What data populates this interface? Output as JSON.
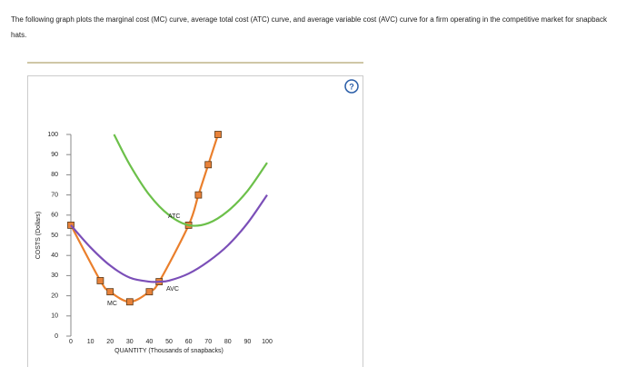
{
  "question": "The following graph plots the marginal cost (MC) curve, average total cost (ATC) curve, and average variable cost (AVC) curve for a firm operating in the competitive market for snapback hats.",
  "chart_data": {
    "type": "line",
    "xlabel": "QUANTITY (Thousands of snapbacks)",
    "ylabel": "COSTS (Dollars)",
    "xlim": [
      0,
      100
    ],
    "ylim": [
      0,
      100
    ],
    "xticks": [
      0,
      10,
      20,
      30,
      40,
      50,
      60,
      70,
      80,
      90,
      100
    ],
    "yticks": [
      0,
      10,
      20,
      30,
      40,
      50,
      60,
      70,
      80,
      90,
      100
    ],
    "series": [
      {
        "name": "MC",
        "color": "#ea7f2c",
        "markers": true,
        "x": [
          0,
          15,
          20,
          30,
          40,
          45,
          60,
          65,
          70,
          75
        ],
        "values": [
          55,
          27.5,
          22,
          17,
          22,
          27,
          55,
          70,
          85,
          100
        ]
      },
      {
        "name": "ATC",
        "color": "#6cc04a",
        "markers": false,
        "x": [
          22,
          30,
          40,
          50,
          60,
          70,
          80,
          90,
          100
        ],
        "values": [
          100,
          85,
          70,
          60,
          55,
          56,
          62,
          72,
          86
        ]
      },
      {
        "name": "AVC",
        "color": "#7b4fb8",
        "markers": false,
        "x": [
          0,
          10,
          20,
          30,
          40,
          45,
          50,
          60,
          70,
          80,
          90,
          100
        ],
        "values": [
          55,
          44,
          35,
          29,
          27,
          27,
          27.5,
          31,
          37,
          45,
          56,
          70
        ]
      }
    ]
  }
}
